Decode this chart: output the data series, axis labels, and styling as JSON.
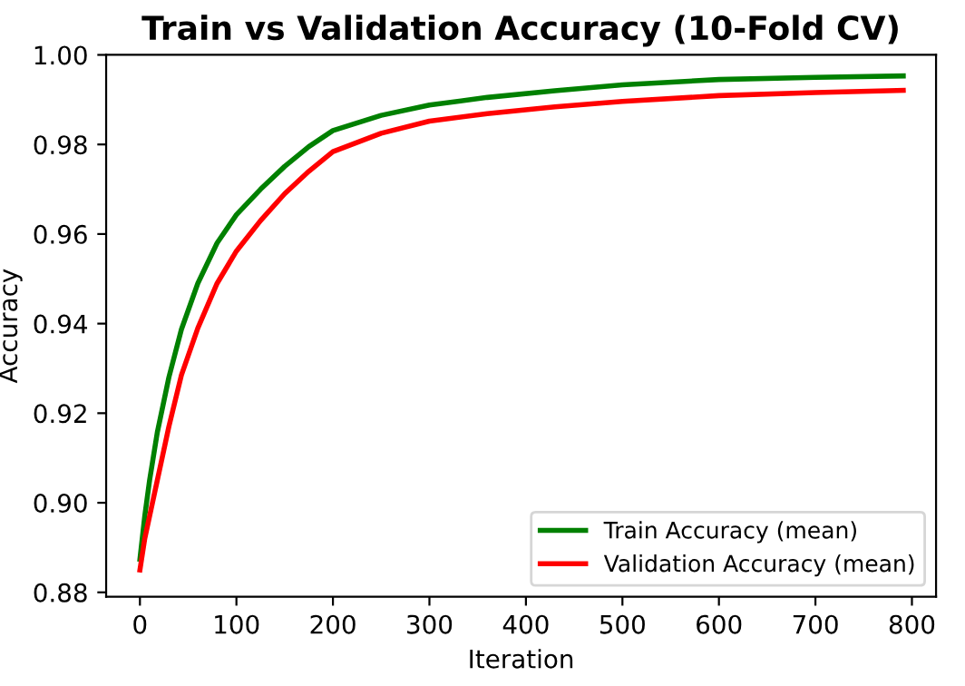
{
  "chart_data": {
    "type": "line",
    "title": "Train vs Validation Accuracy (10-Fold CV)",
    "xlabel": "Iteration",
    "ylabel": "Accuracy",
    "xlim": [
      -35,
      825
    ],
    "xticks": [
      0,
      100,
      200,
      300,
      400,
      500,
      600,
      700,
      800
    ],
    "ylim": [
      0.879,
      1.0
    ],
    "yticks": [
      0.88,
      {
        "value": 0.9,
        "label": "0.90"
      },
      0.92,
      0.94,
      0.96,
      0.98,
      {
        "value": 1.0,
        "label": "1.00"
      }
    ],
    "legend": "bottom right",
    "grid": false,
    "marker": "none",
    "line_style": "solid",
    "series": [
      {
        "name": "Train Accuracy (mean)",
        "color": "#008000",
        "x": [
          0,
          5,
          10,
          18,
          30,
          43,
          60,
          80,
          100,
          125,
          150,
          175,
          200,
          250,
          300,
          360,
          430,
          500,
          600,
          700,
          791
        ],
        "values": [
          0.8874,
          0.897,
          0.905,
          0.9157,
          0.928,
          0.9387,
          0.949,
          0.958,
          0.9643,
          0.97,
          0.9751,
          0.9795,
          0.9831,
          0.9865,
          0.9888,
          0.9905,
          0.992,
          0.9933,
          0.9945,
          0.995,
          0.9953
        ]
      },
      {
        "name": "Validation Accuracy (mean)",
        "color": "#ff0000",
        "x": [
          0,
          5,
          10,
          18,
          30,
          43,
          60,
          80,
          100,
          125,
          150,
          175,
          200,
          250,
          300,
          360,
          430,
          500,
          600,
          700,
          791
        ],
        "values": [
          0.885,
          0.892,
          0.897,
          0.905,
          0.917,
          0.9285,
          0.939,
          0.949,
          0.9562,
          0.963,
          0.969,
          0.974,
          0.9784,
          0.9825,
          0.9852,
          0.9869,
          0.9884,
          0.9896,
          0.9909,
          0.9916,
          0.9921
        ]
      }
    ]
  }
}
